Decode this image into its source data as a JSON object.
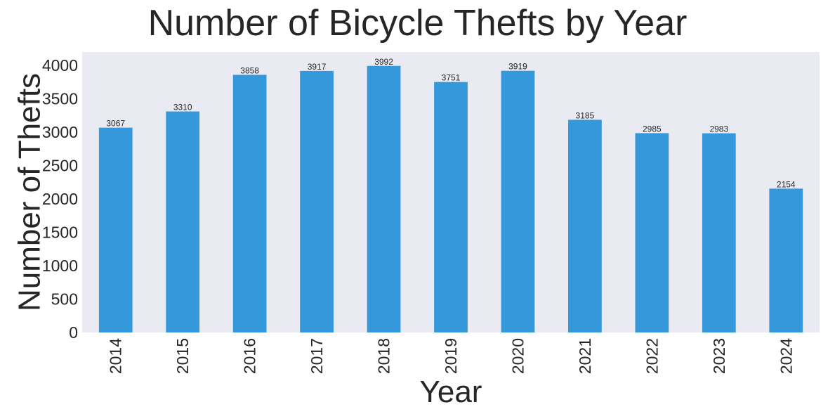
{
  "chart_data": {
    "type": "bar",
    "title": "Number of Bicycle Thefts by Year",
    "xlabel": "Year",
    "ylabel": "Number of Thefts",
    "categories": [
      "2014",
      "2015",
      "2016",
      "2017",
      "2018",
      "2019",
      "2020",
      "2021",
      "2022",
      "2023",
      "2024"
    ],
    "values": [
      3067,
      3310,
      3858,
      3917,
      3992,
      3751,
      3919,
      3185,
      2985,
      2983,
      2154
    ],
    "ylim": [
      0,
      4200
    ],
    "yticks": [
      0,
      500,
      1000,
      1500,
      2000,
      2500,
      3000,
      3500,
      4000
    ],
    "grid": false,
    "bar_color": "#3498db",
    "plot_background": "#eaeaf2"
  }
}
